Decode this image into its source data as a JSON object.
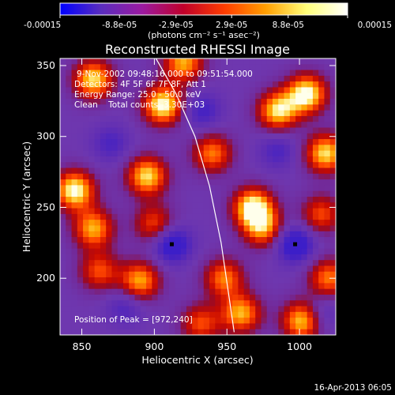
{
  "colorbar": {
    "tick_labels": [
      "-0.00015",
      "-8.8e-05",
      "-2.9e-05",
      "2.9e-05",
      "8.8e-05",
      "0.00015"
    ],
    "range": [
      -0.00015,
      0.00015
    ],
    "unit_label": "(photons cm⁻² s⁻¹ asec⁻²)",
    "stops": [
      "#0000ff",
      "#5a2dbe",
      "#9b1aa0",
      "#c0002a",
      "#ff3c00",
      "#ff9e00",
      "#ffff7a",
      "#ffffff"
    ]
  },
  "chart_data": {
    "type": "heatmap",
    "title": "Reconstructed RHESSI Image",
    "xlabel": "Heliocentric X (arcsec)",
    "ylabel": "Heliocentric Y (arcsec)",
    "xlim": [
      835,
      1025
    ],
    "ylim": [
      160,
      355
    ],
    "x_ticks": [
      850,
      900,
      950,
      1000
    ],
    "y_ticks": [
      200,
      250,
      300,
      350
    ],
    "annotations": [
      "9-Nov-2002 09:48:16.000 to 09:51:54.000",
      "Detectors: 4F 5F 6F 7F 8F, Att 1",
      "Energy Range: 25.0 - 50.0 keV",
      "Clean    Total counts: 3.30E+03"
    ],
    "peak_label": "Position of Peak = [972,240]",
    "minima_markers": [
      {
        "x": 912,
        "y": 224
      },
      {
        "x": 997,
        "y": 224
      }
    ],
    "limb": [
      {
        "x": 900,
        "y": 357
      },
      {
        "x": 915,
        "y": 330
      },
      {
        "x": 928,
        "y": 300
      },
      {
        "x": 938,
        "y": 265
      },
      {
        "x": 946,
        "y": 225
      },
      {
        "x": 951,
        "y": 190
      },
      {
        "x": 955,
        "y": 162
      }
    ],
    "sources": [
      {
        "x": 858,
        "y": 340,
        "w": 0.9
      },
      {
        "x": 906,
        "y": 322,
        "w": 1.0
      },
      {
        "x": 920,
        "y": 352,
        "w": 0.8
      },
      {
        "x": 985,
        "y": 318,
        "w": 0.9
      },
      {
        "x": 1005,
        "y": 330,
        "w": 1.0
      },
      {
        "x": 940,
        "y": 288,
        "w": 0.7
      },
      {
        "x": 1018,
        "y": 288,
        "w": 0.9
      },
      {
        "x": 895,
        "y": 272,
        "w": 0.9
      },
      {
        "x": 845,
        "y": 262,
        "w": 1.0
      },
      {
        "x": 858,
        "y": 235,
        "w": 0.8
      },
      {
        "x": 900,
        "y": 238,
        "w": 0.6
      },
      {
        "x": 968,
        "y": 250,
        "w": 1.0
      },
      {
        "x": 1015,
        "y": 245,
        "w": 0.6
      },
      {
        "x": 975,
        "y": 235,
        "w": 0.7
      },
      {
        "x": 862,
        "y": 205,
        "w": 0.6
      },
      {
        "x": 890,
        "y": 198,
        "w": 0.8
      },
      {
        "x": 948,
        "y": 200,
        "w": 0.7
      },
      {
        "x": 1020,
        "y": 200,
        "w": 0.7
      },
      {
        "x": 960,
        "y": 175,
        "w": 0.8
      },
      {
        "x": 1002,
        "y": 170,
        "w": 0.9
      },
      {
        "x": 932,
        "y": 168,
        "w": 0.6
      }
    ],
    "sinks": [
      {
        "x": 912,
        "y": 224,
        "w": 1.0
      },
      {
        "x": 997,
        "y": 224,
        "w": 1.0
      },
      {
        "x": 933,
        "y": 318,
        "w": 0.6
      },
      {
        "x": 870,
        "y": 295,
        "w": 0.5
      },
      {
        "x": 985,
        "y": 290,
        "w": 0.5
      },
      {
        "x": 880,
        "y": 180,
        "w": 0.5
      },
      {
        "x": 1015,
        "y": 175,
        "w": 0.5
      }
    ]
  },
  "footer": {
    "timestamp": "16-Apr-2013 06:05"
  }
}
